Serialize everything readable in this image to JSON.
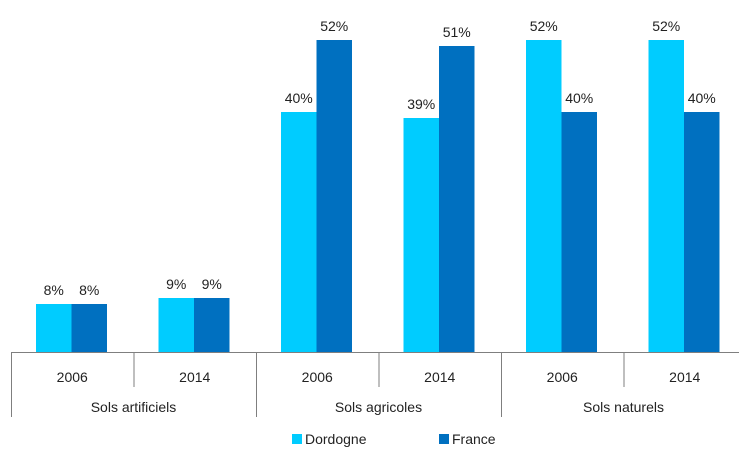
{
  "chart_data": {
    "type": "bar",
    "groups": [
      {
        "label": "Sols artificiels",
        "categories": [
          "2006",
          "2014"
        ]
      },
      {
        "label": "Sols agricoles",
        "categories": [
          "2006",
          "2014"
        ]
      },
      {
        "label": "Sols naturels",
        "categories": [
          "2006",
          "2014"
        ]
      }
    ],
    "series": [
      {
        "name": "Dordogne",
        "color": "#00ccff",
        "values": [
          8,
          9,
          40,
          39,
          52,
          52
        ],
        "labels": [
          "8%",
          "9%",
          "40%",
          "39%",
          "52%",
          "52%"
        ]
      },
      {
        "name": "France",
        "color": "#0070c0",
        "values": [
          8,
          9,
          52,
          51,
          40,
          40
        ],
        "labels": [
          "8%",
          "9%",
          "52%",
          "51%",
          "40%",
          "40%"
        ]
      }
    ],
    "ylim": [
      0,
      60
    ],
    "grid": false,
    "legend_position": "bottom"
  }
}
